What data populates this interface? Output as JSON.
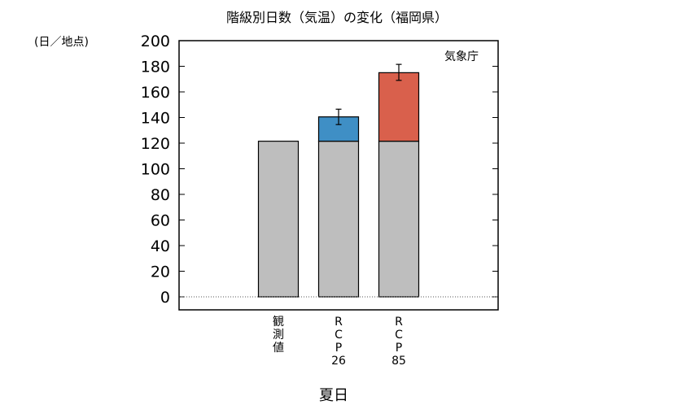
{
  "chart_data": {
    "type": "bar",
    "title": "階級別日数（気温）の変化（福岡県）",
    "ylabel": "(日／地点)",
    "xlabel": "夏日",
    "source_note": "気象庁",
    "ylim": [
      0,
      200
    ],
    "yticks": [
      "0",
      "20",
      "40",
      "60",
      "80",
      "100",
      "120",
      "140",
      "160",
      "180",
      "200"
    ],
    "categories": [
      [
        "観",
        "測",
        "値"
      ],
      [
        "R",
        "C",
        "P",
        "26"
      ],
      [
        "R",
        "C",
        "P",
        "85"
      ]
    ],
    "series": [
      {
        "values": [
          121.5,
          121.5,
          121.5
        ],
        "color": "#bebebe"
      },
      {
        "values": [
          0,
          19,
          53.5
        ],
        "color": "#3f8fc5",
        "color_alt": "#d9604c",
        "error_low": [
          null,
          134.5,
          169
        ],
        "error_high": [
          null,
          146.5,
          181.5
        ]
      }
    ],
    "grid": false,
    "zero_line": "dotted"
  }
}
